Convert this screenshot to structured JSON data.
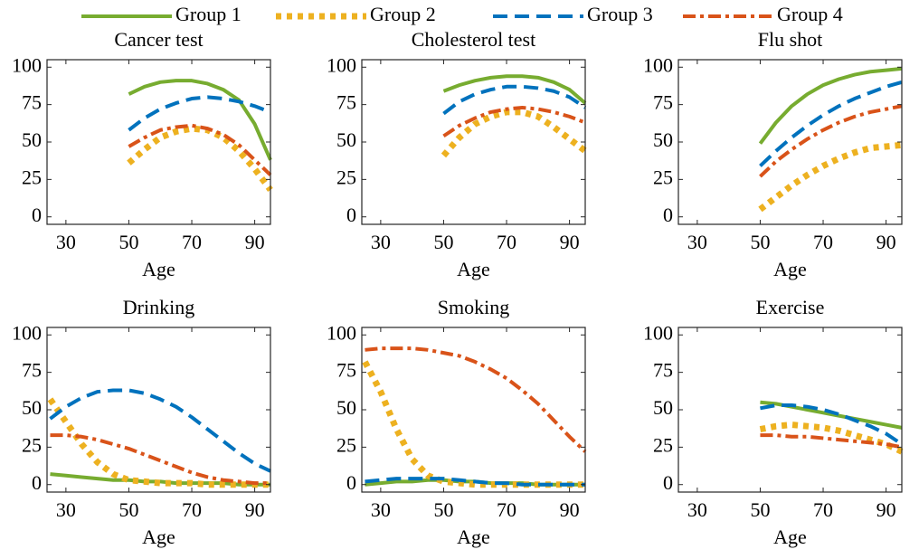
{
  "chart_data": [
    {
      "type": "line",
      "title": "Cancer test",
      "xlabel": "Age",
      "x": [
        50,
        55,
        60,
        65,
        70,
        75,
        80,
        85,
        90,
        95
      ],
      "xlim": [
        24,
        95
      ],
      "ylim": [
        -5,
        105
      ],
      "xticks": [
        30,
        50,
        70,
        90
      ],
      "yticks": [
        0,
        25,
        50,
        75,
        100
      ],
      "series": [
        {
          "name": "Group 1",
          "color": "#77ac30",
          "dash": "solid",
          "values": [
            82,
            87,
            90,
            91,
            91,
            89,
            85,
            78,
            62,
            38
          ]
        },
        {
          "name": "Group 2",
          "color": "#edb120",
          "dash": "dotted",
          "values": [
            36,
            45,
            53,
            57,
            59,
            58,
            53,
            44,
            32,
            18
          ]
        },
        {
          "name": "Group 3",
          "color": "#0072bd",
          "dash": "dashed",
          "values": [
            58,
            66,
            72,
            76,
            79,
            80,
            79,
            77,
            74,
            70
          ]
        },
        {
          "name": "Group 4",
          "color": "#d95319",
          "dash": "dashdot",
          "values": [
            47,
            53,
            58,
            60,
            61,
            59,
            55,
            48,
            38,
            28
          ]
        }
      ]
    },
    {
      "type": "line",
      "title": "Cholesterol test",
      "xlabel": "Age",
      "x": [
        50,
        55,
        60,
        65,
        70,
        75,
        80,
        85,
        90,
        95
      ],
      "xlim": [
        24,
        95
      ],
      "ylim": [
        -5,
        105
      ],
      "xticks": [
        30,
        50,
        70,
        90
      ],
      "yticks": [
        0,
        25,
        50,
        75,
        100
      ],
      "series": [
        {
          "color": "#77ac30",
          "dash": "solid",
          "values": [
            84,
            88,
            91,
            93,
            94,
            94,
            93,
            90,
            85,
            76
          ]
        },
        {
          "color": "#edb120",
          "dash": "dotted",
          "values": [
            41,
            53,
            62,
            67,
            70,
            70,
            67,
            60,
            52,
            44
          ]
        },
        {
          "color": "#0072bd",
          "dash": "dashed",
          "values": [
            69,
            77,
            82,
            85,
            87,
            87,
            86,
            84,
            80,
            73
          ]
        },
        {
          "color": "#d95319",
          "dash": "dashdot",
          "values": [
            54,
            61,
            66,
            70,
            72,
            73,
            72,
            70,
            67,
            63
          ]
        }
      ]
    },
    {
      "type": "line",
      "title": "Flu shot",
      "xlabel": "Age",
      "x": [
        50,
        55,
        60,
        65,
        70,
        75,
        80,
        85,
        90,
        95
      ],
      "xlim": [
        24,
        95
      ],
      "ylim": [
        -5,
        105
      ],
      "xticks": [
        30,
        50,
        70,
        90
      ],
      "yticks": [
        0,
        25,
        50,
        75,
        100
      ],
      "series": [
        {
          "color": "#77ac30",
          "dash": "solid",
          "values": [
            49,
            63,
            74,
            82,
            88,
            92,
            95,
            97,
            98,
            99
          ]
        },
        {
          "color": "#edb120",
          "dash": "dotted",
          "values": [
            5,
            13,
            21,
            28,
            34,
            39,
            43,
            46,
            47,
            48
          ]
        },
        {
          "color": "#0072bd",
          "dash": "dashed",
          "values": [
            34,
            44,
            53,
            61,
            68,
            74,
            79,
            83,
            87,
            90
          ]
        },
        {
          "color": "#d95319",
          "dash": "dashdot",
          "values": [
            27,
            37,
            45,
            52,
            58,
            63,
            67,
            70,
            72,
            74
          ]
        }
      ]
    },
    {
      "type": "line",
      "title": "Drinking",
      "xlabel": "Age",
      "x": [
        25,
        30,
        35,
        40,
        45,
        50,
        55,
        60,
        65,
        70,
        75,
        80,
        85,
        90,
        95
      ],
      "xlim": [
        24,
        95
      ],
      "ylim": [
        -5,
        105
      ],
      "xticks": [
        30,
        50,
        70,
        90
      ],
      "yticks": [
        0,
        25,
        50,
        75,
        100
      ],
      "series": [
        {
          "color": "#77ac30",
          "dash": "solid",
          "values": [
            7,
            6,
            5,
            4,
            3,
            3,
            2,
            2,
            1,
            1,
            1,
            1,
            0,
            0,
            0
          ]
        },
        {
          "color": "#edb120",
          "dash": "dotted",
          "values": [
            57,
            42,
            27,
            15,
            7,
            3,
            2,
            1,
            1,
            1,
            0,
            0,
            0,
            0,
            0
          ]
        },
        {
          "color": "#0072bd",
          "dash": "dashed",
          "values": [
            44,
            52,
            58,
            62,
            63,
            63,
            61,
            57,
            52,
            45,
            37,
            29,
            21,
            14,
            9
          ]
        },
        {
          "color": "#d95319",
          "dash": "dashdot",
          "values": [
            33,
            33,
            32,
            30,
            27,
            24,
            20,
            16,
            12,
            8,
            5,
            3,
            2,
            1,
            1
          ]
        }
      ]
    },
    {
      "type": "line",
      "title": "Smoking",
      "xlabel": "Age",
      "x": [
        25,
        30,
        35,
        40,
        45,
        50,
        55,
        60,
        65,
        70,
        75,
        80,
        85,
        90,
        95
      ],
      "xlim": [
        24,
        95
      ],
      "ylim": [
        -5,
        105
      ],
      "xticks": [
        30,
        50,
        70,
        90
      ],
      "yticks": [
        0,
        25,
        50,
        75,
        100
      ],
      "series": [
        {
          "color": "#77ac30",
          "dash": "solid",
          "values": [
            0,
            1,
            2,
            2,
            3,
            3,
            2,
            2,
            1,
            1,
            1,
            0,
            0,
            0,
            0
          ]
        },
        {
          "color": "#edb120",
          "dash": "dotted",
          "values": [
            82,
            62,
            37,
            17,
            6,
            2,
            1,
            0,
            0,
            0,
            0,
            0,
            0,
            0,
            0
          ]
        },
        {
          "color": "#0072bd",
          "dash": "dashed",
          "values": [
            2,
            3,
            4,
            4,
            4,
            4,
            3,
            2,
            1,
            1,
            0,
            0,
            0,
            0,
            0
          ]
        },
        {
          "color": "#d95319",
          "dash": "dashdot",
          "values": [
            90,
            91,
            91,
            91,
            90,
            88,
            86,
            82,
            77,
            71,
            63,
            54,
            43,
            32,
            22
          ]
        }
      ]
    },
    {
      "type": "line",
      "title": "Exercise",
      "xlabel": "Age",
      "x": [
        50,
        55,
        60,
        65,
        70,
        75,
        80,
        85,
        90,
        95
      ],
      "xlim": [
        24,
        95
      ],
      "ylim": [
        -5,
        105
      ],
      "xticks": [
        30,
        50,
        70,
        90
      ],
      "yticks": [
        0,
        25,
        50,
        75,
        100
      ],
      "series": [
        {
          "color": "#77ac30",
          "dash": "solid",
          "values": [
            55,
            54,
            52,
            50,
            48,
            46,
            44,
            42,
            40,
            38
          ]
        },
        {
          "color": "#edb120",
          "dash": "dotted",
          "values": [
            37,
            39,
            40,
            39,
            38,
            36,
            33,
            30,
            27,
            22
          ]
        },
        {
          "color": "#0072bd",
          "dash": "dashed",
          "values": [
            51,
            53,
            53,
            52,
            50,
            47,
            43,
            39,
            34,
            27
          ]
        },
        {
          "color": "#d95319",
          "dash": "dashdot",
          "values": [
            33,
            33,
            32,
            32,
            31,
            30,
            29,
            28,
            27,
            25
          ]
        }
      ]
    }
  ]
}
